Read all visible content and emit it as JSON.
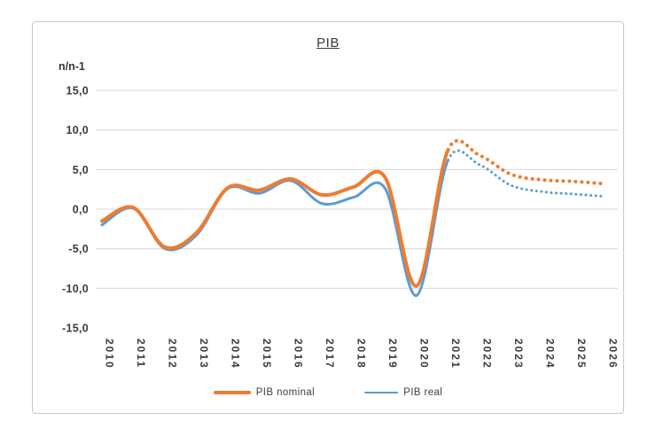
{
  "frame": {
    "border_color": "#c9c9c9",
    "background": "#ffffff"
  },
  "chart_data": {
    "type": "line",
    "title": "PIB",
    "ylabel": "n/n-1",
    "x": [
      2010,
      2011,
      2012,
      2013,
      2014,
      2015,
      2016,
      2017,
      2018,
      2019,
      2020,
      2021,
      2022,
      2023,
      2024,
      2025,
      2026
    ],
    "xtick_labels": [
      "2010",
      "2011",
      "2012",
      "2013",
      "2014",
      "2015",
      "2016",
      "2017",
      "2018",
      "2019",
      "2020",
      "2021",
      "2022",
      "2023",
      "2024",
      "2025",
      "2026"
    ],
    "ylim": [
      -15,
      15
    ],
    "ytick_values": [
      15,
      10,
      5,
      0,
      -5,
      -10,
      -15
    ],
    "ytick_labels": [
      "15,0",
      "10,0",
      "5,0",
      "0,0",
      "-5,0",
      "-10,0",
      "-15,0"
    ],
    "gridline_values": [
      15,
      10,
      5,
      0,
      -5,
      -10
    ],
    "grid": true,
    "grid_color": "#d9d9d9",
    "axis_text_color": "#3b3b3b",
    "smooth": true,
    "legend_position": "bottom",
    "forecast_start_year": 2021,
    "forecast_style": "dotted",
    "series": [
      {
        "name": "PIB nominal",
        "color": "#ED7D31",
        "values": [
          -1.5,
          0.2,
          -4.8,
          -3.0,
          2.7,
          2.4,
          3.8,
          1.8,
          2.8,
          4.0,
          -9.7,
          7.5,
          6.8,
          4.4,
          3.7,
          3.5,
          3.2
        ]
      },
      {
        "name": "PIB real",
        "color": "#5B9BD5",
        "values": [
          -2.0,
          0.1,
          -5.0,
          -3.3,
          2.6,
          2.0,
          3.6,
          0.7,
          1.5,
          2.6,
          -10.9,
          6.2,
          5.6,
          3.0,
          2.2,
          1.9,
          1.6
        ]
      }
    ]
  }
}
